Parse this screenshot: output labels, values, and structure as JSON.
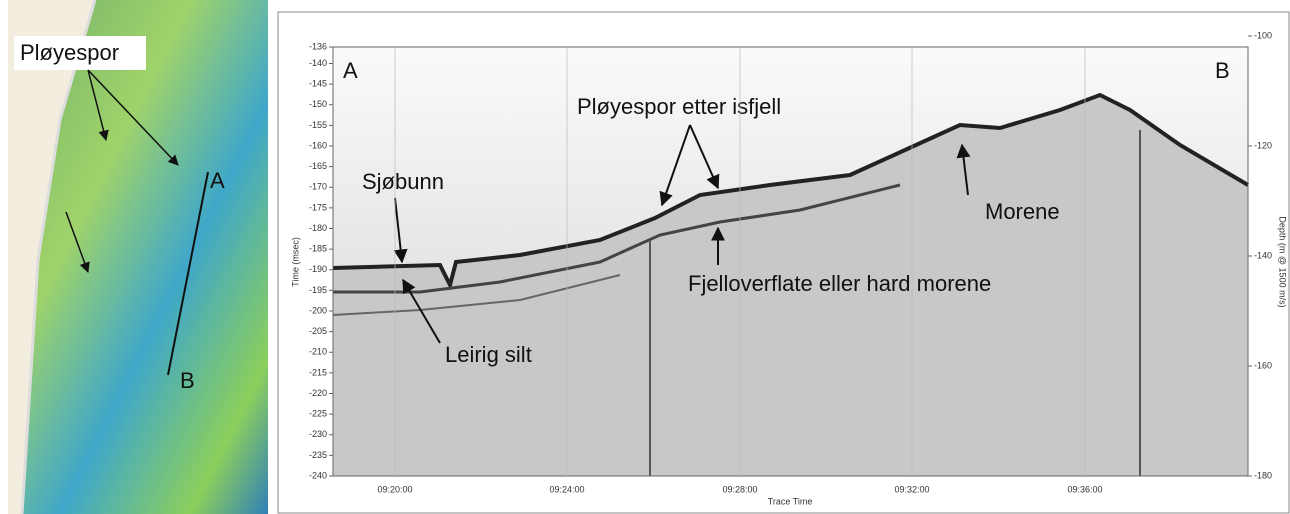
{
  "map": {
    "labels": [
      "Pløyespor",
      "A",
      "B"
    ]
  },
  "profile": {
    "corner_labels": [
      "A",
      "B"
    ],
    "y_title": "Time (msec)",
    "y2_title": "Depth (m @ 1500 m/s)",
    "x_title": "Trace Time",
    "ylim": [
      -136,
      -240
    ],
    "yticks": [
      -136,
      -140,
      -145,
      -150,
      -155,
      -160,
      -165,
      -170,
      -175,
      -180,
      -185,
      -190,
      -195,
      -200,
      -205,
      -210,
      -215,
      -220,
      -225,
      -230,
      -235,
      -240
    ],
    "y2lim": [
      -102,
      -180
    ],
    "y2ticks": [
      -100,
      -120,
      -140,
      -160,
      -180
    ],
    "xticks": [
      "09:20:00",
      "09:24:00",
      "09:28:00",
      "09:32:00",
      "09:36:00"
    ],
    "annotations": [
      "Sjøbunn",
      "Pløyespor etter isfjell",
      "Morene",
      "Fjelloverflate eller hard morene",
      "Leirig silt"
    ]
  }
}
